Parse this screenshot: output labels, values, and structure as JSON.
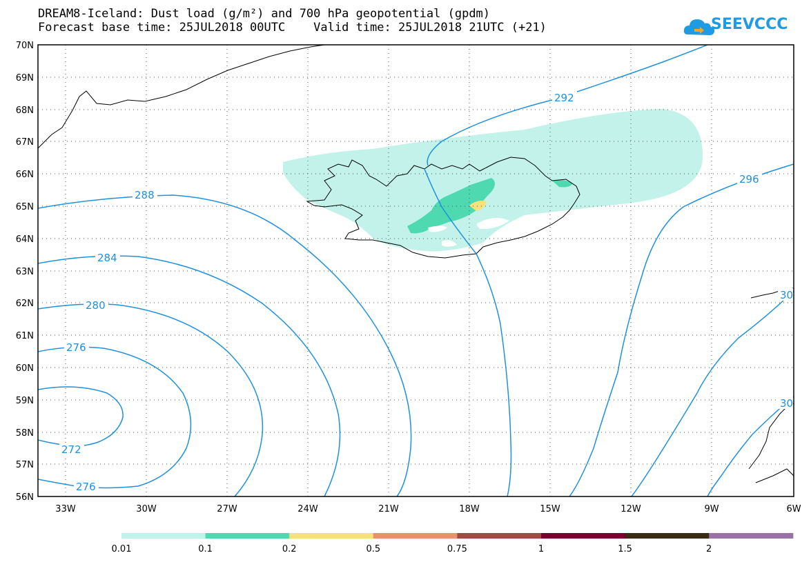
{
  "title": {
    "line1": "DREAM8-Iceland: Dust load (g/m²) and 700 hPa geopotential (gpdm)",
    "line2": "Forecast base time: 25JUL2018 00UTC    Valid time: 25JUL2018 21UTC (+21)"
  },
  "logo": {
    "text": "SEEVCCC",
    "icon": "cloud-icon",
    "color": "#1f9be3"
  },
  "map": {
    "lat_labels": [
      "70N",
      "69N",
      "68N",
      "67N",
      "66N",
      "65N",
      "64N",
      "63N",
      "62N",
      "61N",
      "60N",
      "59N",
      "58N",
      "57N",
      "56N"
    ],
    "lon_labels": [
      "33W",
      "30W",
      "27W",
      "24W",
      "21W",
      "18W",
      "15W",
      "12W",
      "9W",
      "6W"
    ],
    "contour_labels": {
      "c292": "292",
      "c288": "288",
      "c296": "296",
      "c284": "284",
      "c280": "280",
      "c276a": "276",
      "c276b": "276",
      "c272": "272",
      "c30a": "30",
      "c30b": "30"
    },
    "contour_color": "#1e90e0"
  },
  "legend": {
    "colors": [
      "#c2f2ea",
      "#4fd9b0",
      "#f7e17a",
      "#e9906c",
      "#a04a43",
      "#7a0030",
      "#3b2a14",
      "#9a72a8"
    ],
    "labels": [
      "0.01",
      "0.1",
      "0.2",
      "0.5",
      "0.75",
      "1",
      "1.5",
      "2"
    ]
  }
}
